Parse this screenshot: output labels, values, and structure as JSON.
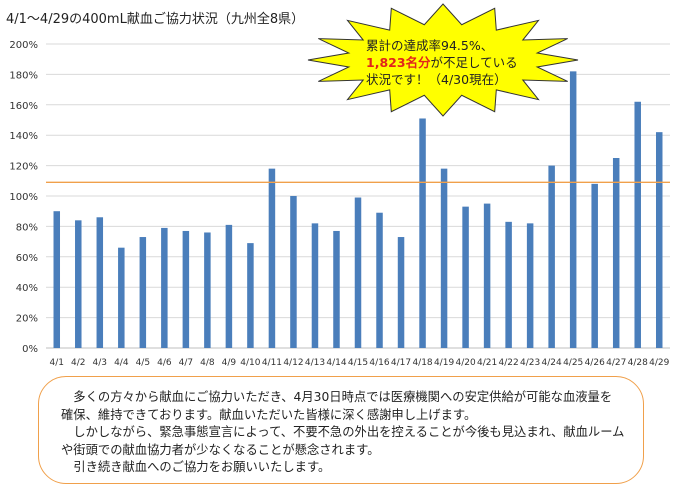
{
  "title": "4/1～4/29の400mL献血ご協力状況（九州全8県）",
  "callout": {
    "line1": "累計の達成率94.5%、",
    "line2_highlight": "1,823名分",
    "line2_rest": "が不足している",
    "line3": "状況です！（4/30現在）"
  },
  "note": {
    "lines": [
      "　多くの方々から献血にご協力いただき、4月30日時点では医療機関への安定供給が可能な血液量を",
      "確保、維持できております。献血いただいた皆様に深く感謝申し上げます。",
      "　しかしながら、緊急事態宣言によって、不要不急の外出を控えることが今後も見込まれ、献血ルーム",
      "や街頭での献血協力者が少なくなることが懸念されます。",
      "　引き続き献血へのご協力をお願いいたします。"
    ]
  },
  "chart_data": {
    "type": "bar",
    "title": "4/1～4/29の400mL献血ご協力状況（九州全8県）",
    "categories": [
      "4/1",
      "4/2",
      "4/3",
      "4/4",
      "4/5",
      "4/6",
      "4/7",
      "4/8",
      "4/9",
      "4/10",
      "4/11",
      "4/12",
      "4/13",
      "4/14",
      "4/15",
      "4/16",
      "4/17",
      "4/18",
      "4/19",
      "4/20",
      "4/21",
      "4/22",
      "4/23",
      "4/24",
      "4/25",
      "4/26",
      "4/27",
      "4/28",
      "4/29"
    ],
    "values": [
      90,
      84,
      86,
      66,
      73,
      79,
      77,
      76,
      81,
      69,
      118,
      100,
      82,
      77,
      99,
      89,
      73,
      151,
      118,
      93,
      95,
      83,
      82,
      120,
      182,
      108,
      125,
      162,
      142
    ],
    "ylim": [
      0,
      200
    ],
    "yticks": [
      "0%",
      "20%",
      "40%",
      "60%",
      "80%",
      "100%",
      "120%",
      "140%",
      "160%",
      "180%",
      "200%"
    ],
    "reference_line": 109,
    "grid": true,
    "colors": {
      "bar": "#4a7ebb",
      "reference": "#f0a04b",
      "grid": "#d9d9d9",
      "callout": "#ffff00",
      "highlight": "#e1251b"
    }
  }
}
